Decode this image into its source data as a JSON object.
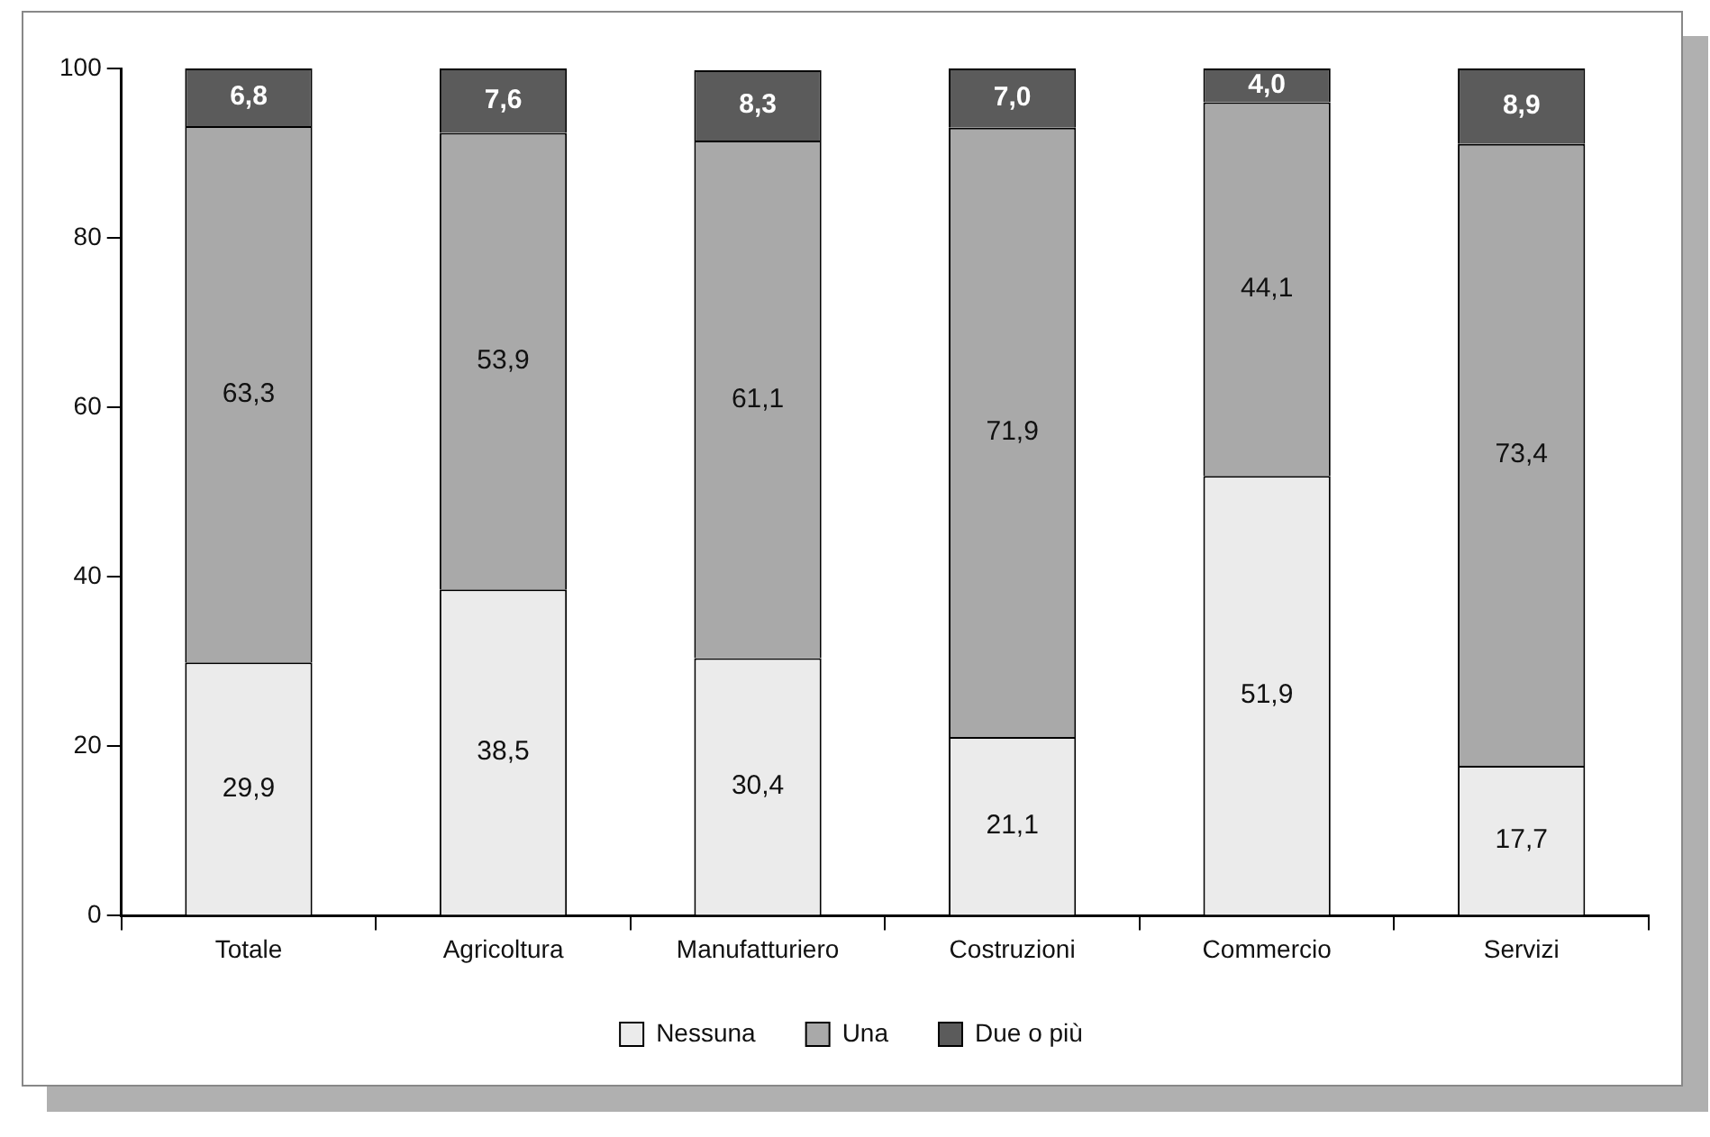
{
  "chart_data": {
    "type": "bar",
    "stacked": true,
    "categories": [
      "Totale",
      "Agricoltura",
      "Manufatturiero",
      "Costruzioni",
      "Commercio",
      "Servizi"
    ],
    "series": [
      {
        "name": "Nessuna",
        "color": "#ebebeb",
        "values": [
          29.9,
          38.5,
          30.4,
          21.1,
          51.9,
          17.7
        ],
        "value_labels": [
          "29,9",
          "38,5",
          "30,4",
          "21,1",
          "51,9",
          "17,7"
        ]
      },
      {
        "name": "Una",
        "color": "#a9a9a9",
        "values": [
          63.3,
          53.9,
          61.1,
          71.9,
          44.1,
          73.4
        ],
        "value_labels": [
          "63,3",
          "53,9",
          "61,1",
          "71,9",
          "44,1",
          "73,4"
        ]
      },
      {
        "name": "Due o più",
        "color": "#5b5b5b",
        "values": [
          6.8,
          7.6,
          8.3,
          7.0,
          4.0,
          8.9
        ],
        "value_labels": [
          "6,8",
          "7,6",
          "8,3",
          "7,0",
          "4,0",
          "8,9"
        ]
      }
    ],
    "ylim": [
      0,
      100
    ],
    "yticks": [
      0,
      20,
      40,
      60,
      80,
      100
    ],
    "grid": false,
    "legend": "bottom"
  }
}
